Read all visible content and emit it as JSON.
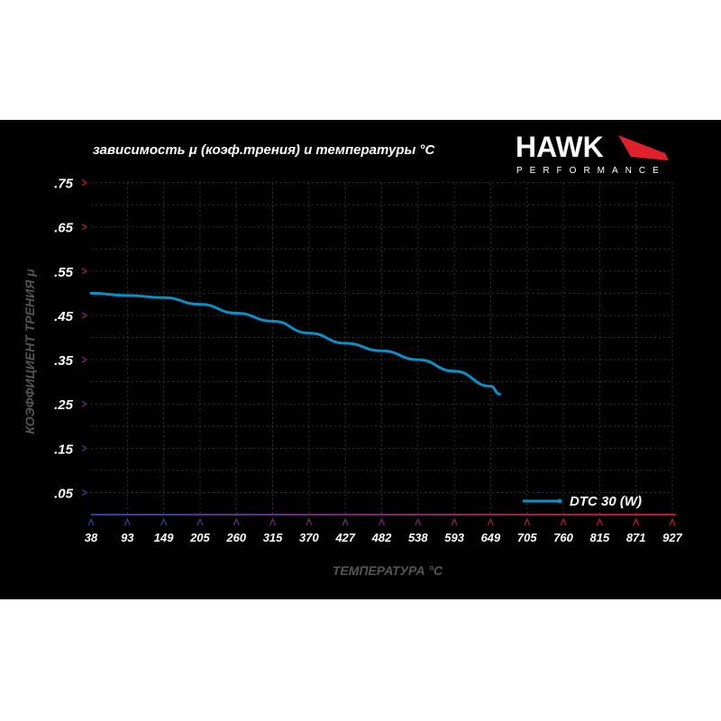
{
  "header": {
    "title": "зависимость μ (коэф.трения) и температуры °C",
    "logo_main": "HAWK",
    "logo_sub": "PERFORMANCE"
  },
  "chart_data": {
    "type": "line",
    "title": "зависимость μ (коэф.трения) и температуры °C",
    "xlabel": "ТЕМПЕРАТУРА °C",
    "ylabel": "КОЭФФИЦИЕНТ ТРЕНИЯ μ",
    "x_ticks": [
      "38",
      "93",
      "149",
      "205",
      "260",
      "315",
      "370",
      "427",
      "482",
      "538",
      "593",
      "649",
      "705",
      "760",
      "815",
      "871",
      "927"
    ],
    "y_ticks": [
      ".75",
      ".65",
      ".55",
      ".45",
      ".35",
      ".25",
      ".15",
      ".05"
    ],
    "y_tick_values": [
      0.75,
      0.65,
      0.55,
      0.45,
      0.35,
      0.25,
      0.15,
      0.05
    ],
    "xlim": [
      38,
      927
    ],
    "ylim": [
      0,
      0.8
    ],
    "grid": true,
    "legend_placement": "bottom-right",
    "series": [
      {
        "name": "DTC 30 (W)",
        "color": "#0a8fc8",
        "x": [
          38,
          93,
          149,
          205,
          260,
          315,
          370,
          427,
          482,
          538,
          593,
          649,
          663
        ],
        "y": [
          0.5,
          0.495,
          0.49,
          0.475,
          0.455,
          0.437,
          0.41,
          0.387,
          0.37,
          0.35,
          0.324,
          0.29,
          0.272
        ]
      }
    ]
  }
}
